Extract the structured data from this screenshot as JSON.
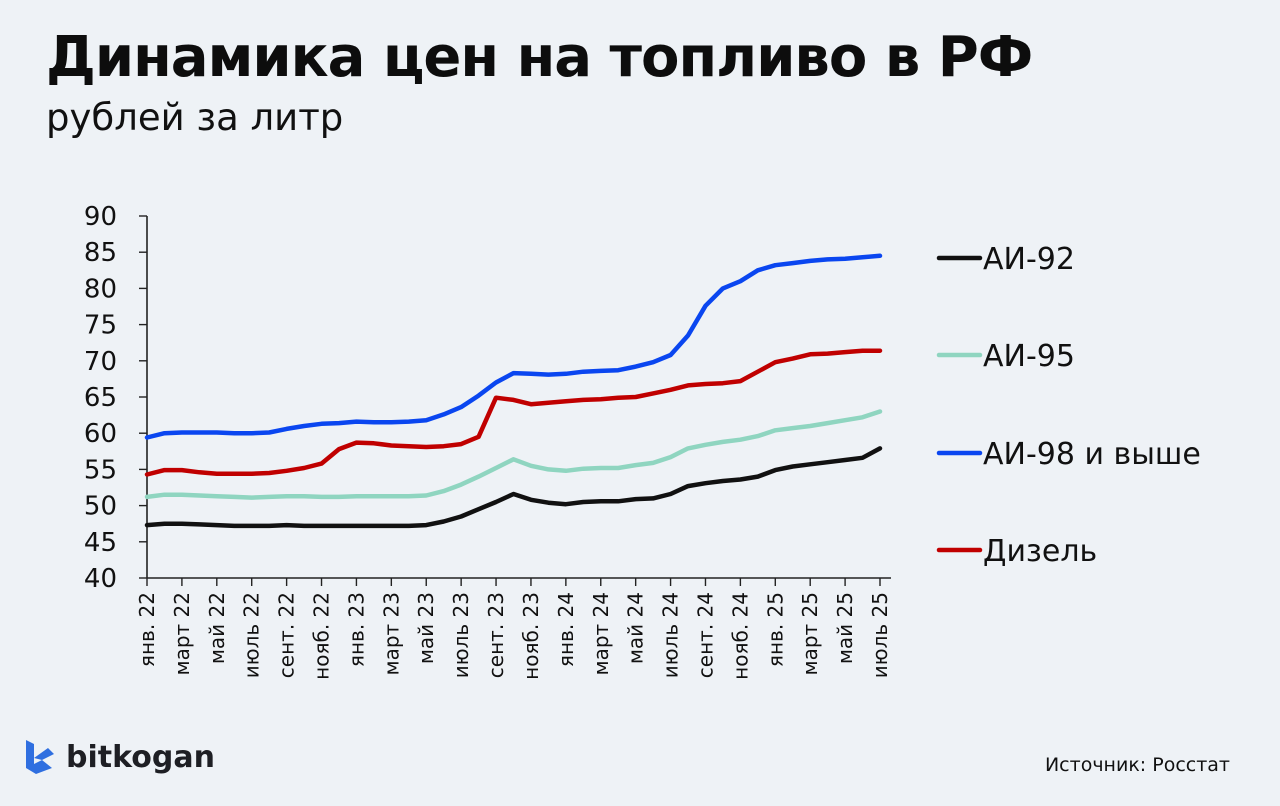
{
  "header": {
    "title": "Динамика цен на топливо в РФ",
    "subtitle": "рублей за литр"
  },
  "footer": {
    "brand": "bitkogan",
    "source": "Источник: Росстат"
  },
  "colors": {
    "background": "#eef2f6",
    "ai92": "#111111",
    "ai95": "#8fd5c0",
    "ai98": "#0a46f0",
    "diesel": "#c00000",
    "logo_blue": "#2f6fe0"
  },
  "chart_data": {
    "type": "line",
    "title": "Динамика цен на топливо в РФ",
    "subtitle": "рублей за литр",
    "xlabel": "",
    "ylabel": "рублей за литр",
    "ylim": [
      40,
      90
    ],
    "yticks": [
      40,
      45,
      50,
      55,
      60,
      65,
      70,
      75,
      80,
      85,
      90
    ],
    "grid": false,
    "legend_position": "right",
    "x_tick_labels": [
      "янв. 22",
      "март 22",
      "май 22",
      "июль 22",
      "сент. 22",
      "нояб. 22",
      "янв. 23",
      "март 23",
      "май 23",
      "июль 23",
      "сент. 23",
      "нояб. 23",
      "янв. 24",
      "март 24",
      "май 24",
      "июль 24",
      "сент. 24",
      "нояб. 24",
      "янв. 25",
      "март 25",
      "май 25",
      "июль 25"
    ],
    "x": [
      "янв. 22",
      "фев. 22",
      "март 22",
      "апр. 22",
      "май 22",
      "июнь 22",
      "июль 22",
      "авг. 22",
      "сент. 22",
      "окт. 22",
      "нояб. 22",
      "дек. 22",
      "янв. 23",
      "фев. 23",
      "март 23",
      "апр. 23",
      "май 23",
      "июнь 23",
      "июль 23",
      "авг. 23",
      "сент. 23",
      "окт. 23",
      "нояб. 23",
      "дек. 23",
      "янв. 24",
      "фев. 24",
      "март 24",
      "апр. 24",
      "май 24",
      "июнь 24",
      "июль 24",
      "авг. 24",
      "сент. 24",
      "окт. 24",
      "нояб. 24",
      "дек. 24",
      "янв. 25",
      "фев. 25",
      "март 25",
      "апр. 25",
      "май 25",
      "июнь 25",
      "июль 25"
    ],
    "series": [
      {
        "name": "АИ-92",
        "color": "#111111",
        "values": [
          47.3,
          47.5,
          47.5,
          47.4,
          47.3,
          47.2,
          47.2,
          47.2,
          47.3,
          47.2,
          47.2,
          47.2,
          47.2,
          47.2,
          47.2,
          47.2,
          47.3,
          47.8,
          48.5,
          49.5,
          50.5,
          51.6,
          50.8,
          50.4,
          50.2,
          50.5,
          50.6,
          50.6,
          50.9,
          51.0,
          51.6,
          52.7,
          53.1,
          53.4,
          53.6,
          54.0,
          54.9,
          55.4,
          55.7,
          56.0,
          56.3,
          56.6,
          57.9
        ]
      },
      {
        "name": "АИ-95",
        "color": "#8fd5c0",
        "values": [
          51.2,
          51.5,
          51.5,
          51.4,
          51.3,
          51.2,
          51.1,
          51.2,
          51.3,
          51.3,
          51.2,
          51.2,
          51.3,
          51.3,
          51.3,
          51.3,
          51.4,
          52.0,
          52.9,
          54.0,
          55.2,
          56.4,
          55.5,
          55.0,
          54.8,
          55.1,
          55.2,
          55.2,
          55.6,
          55.9,
          56.7,
          57.9,
          58.4,
          58.8,
          59.1,
          59.6,
          60.4,
          60.7,
          61.0,
          61.4,
          61.8,
          62.2,
          63.0
        ]
      },
      {
        "name": "АИ-98 и выше",
        "color": "#0a46f0",
        "values": [
          59.4,
          60.0,
          60.1,
          60.1,
          60.1,
          60.0,
          60.0,
          60.1,
          60.6,
          61.0,
          61.3,
          61.4,
          61.6,
          61.5,
          61.5,
          61.6,
          61.8,
          62.6,
          63.6,
          65.2,
          67.0,
          68.3,
          68.2,
          68.1,
          68.2,
          68.5,
          68.6,
          68.7,
          69.2,
          69.8,
          70.8,
          73.5,
          77.6,
          80.0,
          81.0,
          82.5,
          83.2,
          83.5,
          83.8,
          84.0,
          84.1,
          84.3,
          84.5
        ]
      },
      {
        "name": "Дизель",
        "color": "#c00000",
        "values": [
          54.3,
          54.9,
          54.9,
          54.6,
          54.4,
          54.4,
          54.4,
          54.5,
          54.8,
          55.2,
          55.8,
          57.8,
          58.7,
          58.6,
          58.3,
          58.2,
          58.1,
          58.2,
          58.5,
          59.5,
          64.9,
          64.6,
          64.0,
          64.2,
          64.4,
          64.6,
          64.7,
          64.9,
          65.0,
          65.5,
          66.0,
          66.6,
          66.8,
          66.9,
          67.2,
          68.5,
          69.8,
          70.3,
          70.9,
          71.0,
          71.2,
          71.4,
          71.4
        ]
      }
    ]
  },
  "legend": {
    "items": [
      {
        "label": "АИ-92",
        "color": "#111111"
      },
      {
        "label": "АИ-95",
        "color": "#8fd5c0"
      },
      {
        "label": "АИ-98 и выше",
        "color": "#0a46f0"
      },
      {
        "label": "Дизель",
        "color": "#c00000"
      }
    ]
  }
}
